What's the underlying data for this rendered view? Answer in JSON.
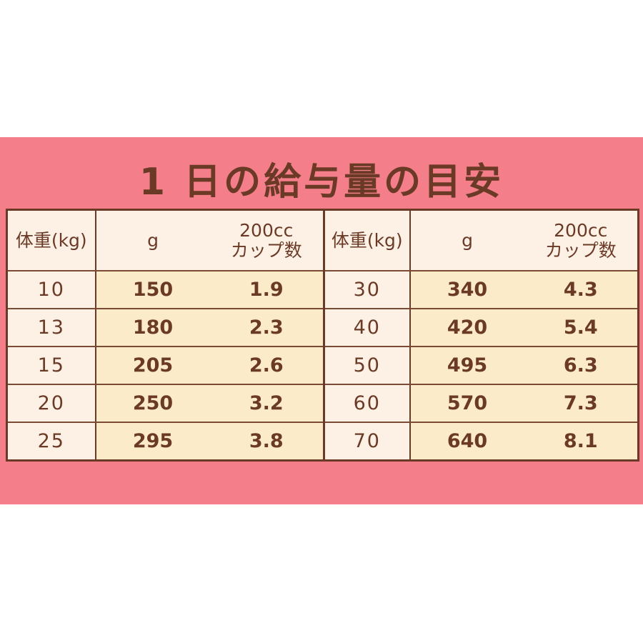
{
  "title": "1 日の給与量の目安",
  "headers": {
    "weight": "体重(kg)",
    "grams": "g",
    "cups_line1": "200cc",
    "cups_line2": "カップ数"
  },
  "rows_left": [
    {
      "kg": "10",
      "g": "150",
      "cups": "1.9"
    },
    {
      "kg": "13",
      "g": "180",
      "cups": "2.3"
    },
    {
      "kg": "15",
      "g": "205",
      "cups": "2.6"
    },
    {
      "kg": "20",
      "g": "250",
      "cups": "3.2"
    },
    {
      "kg": "25",
      "g": "295",
      "cups": "3.8"
    }
  ],
  "rows_right": [
    {
      "kg": "30",
      "g": "340",
      "cups": "4.3"
    },
    {
      "kg": "40",
      "g": "420",
      "cups": "5.4"
    },
    {
      "kg": "50",
      "g": "495",
      "cups": "6.3"
    },
    {
      "kg": "60",
      "g": "570",
      "cups": "7.3"
    },
    {
      "kg": "70",
      "g": "640",
      "cups": "8.1"
    }
  ],
  "colors": {
    "band": "#f47f8b",
    "text": "#6b3a26",
    "cell_light": "#fdf1e6",
    "cell_value": "#fcebc9"
  }
}
